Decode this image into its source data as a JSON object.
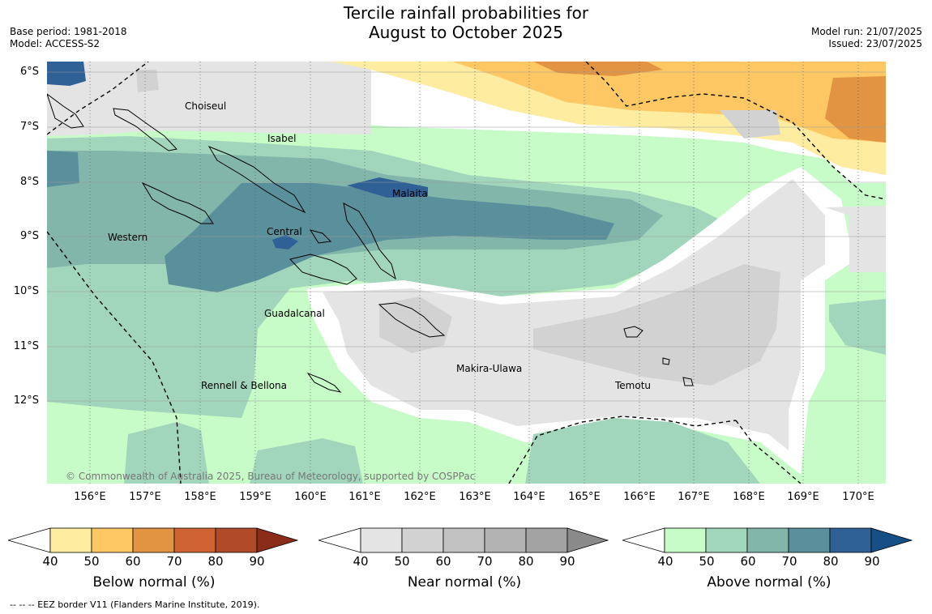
{
  "title_line1": "Tercile rainfall probabilities for",
  "title_line2": "August to October 2025",
  "base_period": "Base period: 1981-2018",
  "model": "Model: ACCESS-S2",
  "model_run": "Model run: 21/07/2025",
  "issued": "Issued: 23/07/2025",
  "copyright": "© Commonwealth of Australia 2025, Bureau of Meteorology, supported by COSPPac",
  "lat_labels": [
    "6°S",
    "7°S",
    "8°S",
    "9°S",
    "10°S",
    "11°S",
    "12°S"
  ],
  "lon_labels": [
    "156°E",
    "157°E",
    "158°E",
    "159°E",
    "160°E",
    "161°E",
    "162°E",
    "163°E",
    "164°E",
    "165°E",
    "166°E",
    "167°E",
    "168°E",
    "169°E",
    "170°E"
  ],
  "regions": {
    "choiseul": "Choiseul",
    "isabel": "Isabel",
    "malaita": "Malaita",
    "western": "Western",
    "central": "Central",
    "guadalcanal": "Guadalcanal",
    "makira": "Makira-Ulawa",
    "temotu": "Temotu",
    "rennell": "Rennell & Bellona"
  },
  "colorbars": {
    "below": {
      "title": "Below normal (%)",
      "ticks": [
        "40",
        "50",
        "60",
        "70",
        "80",
        "90"
      ],
      "colors": [
        "#ffffff",
        "#feeca0",
        "#fdc864",
        "#e39443",
        "#cf6332",
        "#b04a28",
        "#8b2c1a"
      ]
    },
    "near": {
      "title": "Near normal (%)",
      "ticks": [
        "40",
        "50",
        "60",
        "70",
        "80",
        "90"
      ],
      "colors": [
        "#ffffff",
        "#e4e4e4",
        "#d2d2d2",
        "#c2c2c2",
        "#b3b3b3",
        "#a3a3a3",
        "#8a8a8a"
      ]
    },
    "above": {
      "title": "Above normal (%)",
      "ticks": [
        "40",
        "50",
        "60",
        "70",
        "80",
        "90"
      ],
      "colors": [
        "#ffffff",
        "#c7fcc8",
        "#a2d6bc",
        "#82b6aa",
        "#5a8f9c",
        "#2f6096",
        "#154f85"
      ]
    }
  },
  "footer": "--  --  -- EEZ border V11 (Flanders Marine Institute, 2019)."
}
